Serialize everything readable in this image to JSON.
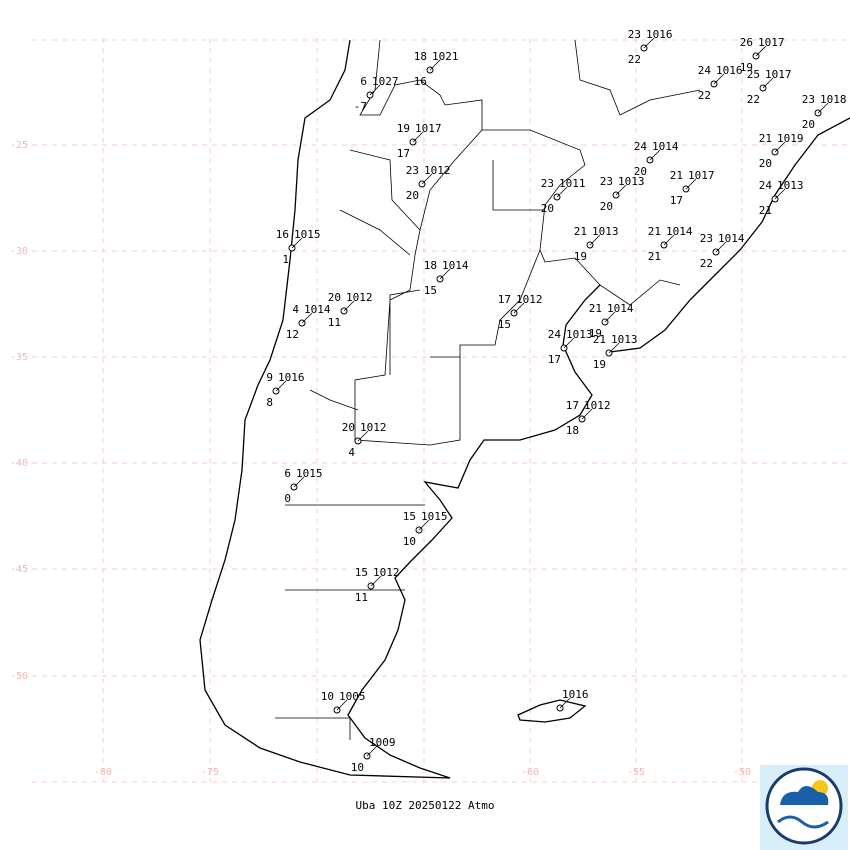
{
  "footer": "Uba 10Z 20250122 Atmo",
  "lat_labels": [
    "-25",
    "-30",
    "-35",
    "-40",
    "-45",
    "-50"
  ],
  "lon_labels": [
    "-80",
    "-75",
    "-60",
    "-55",
    "-50"
  ],
  "stations": [
    {
      "temp": "18",
      "pressure": "1021",
      "dewpoint": "16"
    },
    {
      "temp": "6",
      "pressure": "1027",
      "dewpoint": "-7"
    },
    {
      "temp": "19",
      "pressure": "1017",
      "dewpoint": "17"
    },
    {
      "temp": "23",
      "pressure": "1012",
      "dewpoint": "20"
    },
    {
      "temp": "16",
      "pressure": "1015",
      "dewpoint": "1"
    },
    {
      "temp": "18",
      "pressure": "1014",
      "dewpoint": "15"
    },
    {
      "temp": "20",
      "pressure": "1012",
      "dewpoint": "11"
    },
    {
      "temp": "4",
      "pressure": "1014",
      "dewpoint": "12"
    },
    {
      "temp": "17",
      "pressure": "1012",
      "dewpoint": "15"
    },
    {
      "temp": "9",
      "pressure": "1016",
      "dewpoint": "8"
    },
    {
      "temp": "20",
      "pressure": "1012",
      "dewpoint": "4"
    },
    {
      "temp": "6",
      "pressure": "1015",
      "dewpoint": "0"
    },
    {
      "temp": "15",
      "pressure": "1015",
      "dewpoint": "10"
    },
    {
      "temp": "15",
      "pressure": "1012",
      "dewpoint": "11"
    },
    {
      "temp": "10",
      "pressure": "1005"
    },
    {
      "pressure": "1009",
      "dewpoint": "10"
    },
    {
      "pressure": "1016"
    },
    {
      "temp": "17",
      "pressure": "1012",
      "dewpoint": "18"
    },
    {
      "temp": "24",
      "pressure": "1013",
      "dewpoint": "17"
    },
    {
      "temp": "21",
      "pressure": "1013",
      "dewpoint": "19"
    },
    {
      "temp": "21",
      "pressure": "1014",
      "dewpoint": "19"
    },
    {
      "temp": "21",
      "pressure": "1013",
      "dewpoint": "19"
    },
    {
      "temp": "23",
      "pressure": "1011",
      "dewpoint": "20"
    },
    {
      "temp": "23",
      "pressure": "1013",
      "dewpoint": "20"
    },
    {
      "temp": "24",
      "pressure": "1014",
      "dewpoint": "20"
    },
    {
      "temp": "21",
      "pressure": "1017",
      "dewpoint": "17"
    },
    {
      "temp": "21",
      "pressure": "1014",
      "dewpoint": "21"
    },
    {
      "temp": "23",
      "pressure": "1014",
      "dewpoint": "22"
    },
    {
      "temp": "24",
      "pressure": "1013",
      "dewpoint": "21"
    },
    {
      "temp": "21",
      "pressure": "1019",
      "dewpoint": "20"
    },
    {
      "temp": "23",
      "pressure": "1018",
      "dewpoint": "20"
    },
    {
      "temp": "23",
      "pressure": "1016",
      "dewpoint": "22"
    },
    {
      "temp": "26",
      "pressure": "1017",
      "dewpoint": "19"
    },
    {
      "temp": "24",
      "pressure": "1016",
      "dewpoint": "22"
    },
    {
      "temp": "25",
      "pressure": "1017",
      "dewpoint": "22"
    }
  ]
}
